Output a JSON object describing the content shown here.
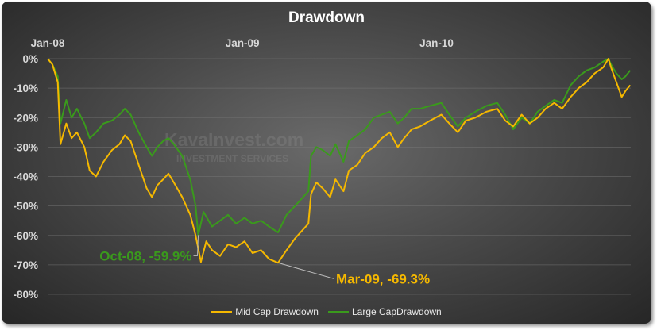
{
  "chart_data": {
    "type": "line",
    "title": "Drawdown",
    "x_tick_labels": [
      "Jan-08",
      "Jan-09",
      "Jan-10"
    ],
    "y_tick_labels": [
      "0%",
      "-10%",
      "-20%",
      "-30%",
      "-40%",
      "-50%",
      "-60%",
      "-70%",
      "-80%"
    ],
    "ylim": [
      -80,
      0
    ],
    "x_range": [
      "2008-01",
      "2011-01"
    ],
    "grid": "horizontal",
    "legend_position": "bottom",
    "watermark": "KavaInvest.com INVESTMENT SERVICES",
    "series": [
      {
        "name": "Mid Cap Drawdown",
        "color": "#f5b800",
        "points": [
          [
            "2008-01-01",
            0
          ],
          [
            "2008-01-10",
            -2
          ],
          [
            "2008-01-20",
            -8
          ],
          [
            "2008-01-25",
            -29
          ],
          [
            "2008-02-05",
            -22
          ],
          [
            "2008-02-15",
            -27
          ],
          [
            "2008-02-25",
            -25
          ],
          [
            "2008-03-10",
            -30
          ],
          [
            "2008-03-20",
            -38
          ],
          [
            "2008-04-01",
            -40
          ],
          [
            "2008-04-15",
            -35
          ],
          [
            "2008-05-01",
            -31
          ],
          [
            "2008-05-15",
            -29
          ],
          [
            "2008-05-25",
            -26
          ],
          [
            "2008-06-05",
            -28
          ],
          [
            "2008-06-20",
            -36
          ],
          [
            "2008-07-05",
            -44
          ],
          [
            "2008-07-15",
            -47
          ],
          [
            "2008-07-25",
            -43
          ],
          [
            "2008-08-05",
            -41
          ],
          [
            "2008-08-15",
            -39
          ],
          [
            "2008-08-25",
            -42
          ],
          [
            "2008-09-10",
            -47
          ],
          [
            "2008-09-25",
            -53
          ],
          [
            "2008-10-05",
            -60
          ],
          [
            "2008-10-15",
            -69
          ],
          [
            "2008-10-25",
            -62
          ],
          [
            "2008-11-05",
            -65
          ],
          [
            "2008-11-20",
            -67
          ],
          [
            "2008-12-05",
            -63
          ],
          [
            "2008-12-20",
            -64
          ],
          [
            "2009-01-05",
            -62
          ],
          [
            "2009-01-20",
            -66
          ],
          [
            "2009-02-05",
            -65
          ],
          [
            "2009-02-20",
            -68
          ],
          [
            "2009-03-09",
            -69.3
          ],
          [
            "2009-03-25",
            -65
          ],
          [
            "2009-04-10",
            -61
          ],
          [
            "2009-04-25",
            -58
          ],
          [
            "2009-05-05",
            -56
          ],
          [
            "2009-05-10",
            -46
          ],
          [
            "2009-05-20",
            -42
          ],
          [
            "2009-06-01",
            -44
          ],
          [
            "2009-06-15",
            -47
          ],
          [
            "2009-06-25",
            -41
          ],
          [
            "2009-07-10",
            -45
          ],
          [
            "2009-07-20",
            -38
          ],
          [
            "2009-08-05",
            -36
          ],
          [
            "2009-08-20",
            -32
          ],
          [
            "2009-09-05",
            -30
          ],
          [
            "2009-09-20",
            -27
          ],
          [
            "2009-10-05",
            -25
          ],
          [
            "2009-10-20",
            -30
          ],
          [
            "2009-11-01",
            -27
          ],
          [
            "2009-11-15",
            -24
          ],
          [
            "2009-12-01",
            -23
          ],
          [
            "2009-12-20",
            -21
          ],
          [
            "2010-01-10",
            -19
          ],
          [
            "2010-01-25",
            -22
          ],
          [
            "2010-02-10",
            -25
          ],
          [
            "2010-02-25",
            -21
          ],
          [
            "2010-03-15",
            -20
          ],
          [
            "2010-04-05",
            -18
          ],
          [
            "2010-04-25",
            -17
          ],
          [
            "2010-05-10",
            -21
          ],
          [
            "2010-05-25",
            -23
          ],
          [
            "2010-06-10",
            -19
          ],
          [
            "2010-06-25",
            -22
          ],
          [
            "2010-07-10",
            -20
          ],
          [
            "2010-07-25",
            -17
          ],
          [
            "2010-08-10",
            -15
          ],
          [
            "2010-08-25",
            -17
          ],
          [
            "2010-09-10",
            -13
          ],
          [
            "2010-09-25",
            -10
          ],
          [
            "2010-10-10",
            -8
          ],
          [
            "2010-10-25",
            -5
          ],
          [
            "2010-11-10",
            -3
          ],
          [
            "2010-11-20",
            0
          ],
          [
            "2010-11-25",
            -3
          ],
          [
            "2010-12-05",
            -8
          ],
          [
            "2010-12-15",
            -13
          ],
          [
            "2010-12-22",
            -11
          ],
          [
            "2010-12-31",
            -9
          ]
        ]
      },
      {
        "name": "Large CapDrawdown",
        "color": "#3a9a1c",
        "points": [
          [
            "2008-01-01",
            0
          ],
          [
            "2008-01-10",
            -2
          ],
          [
            "2008-01-20",
            -6
          ],
          [
            "2008-01-25",
            -22
          ],
          [
            "2008-02-05",
            -14
          ],
          [
            "2008-02-15",
            -20
          ],
          [
            "2008-02-25",
            -17
          ],
          [
            "2008-03-10",
            -22
          ],
          [
            "2008-03-20",
            -27
          ],
          [
            "2008-04-01",
            -25
          ],
          [
            "2008-04-15",
            -22
          ],
          [
            "2008-05-01",
            -21
          ],
          [
            "2008-05-15",
            -19
          ],
          [
            "2008-05-25",
            -17
          ],
          [
            "2008-06-05",
            -19
          ],
          [
            "2008-06-20",
            -25
          ],
          [
            "2008-07-05",
            -30
          ],
          [
            "2008-07-15",
            -33
          ],
          [
            "2008-07-25",
            -30
          ],
          [
            "2008-08-05",
            -28
          ],
          [
            "2008-08-15",
            -27
          ],
          [
            "2008-08-25",
            -29
          ],
          [
            "2008-09-10",
            -33
          ],
          [
            "2008-09-25",
            -41
          ],
          [
            "2008-10-05",
            -50
          ],
          [
            "2008-10-10",
            -59.9
          ],
          [
            "2008-10-20",
            -52
          ],
          [
            "2008-11-05",
            -57
          ],
          [
            "2008-11-20",
            -55
          ],
          [
            "2008-12-05",
            -53
          ],
          [
            "2008-12-20",
            -56
          ],
          [
            "2009-01-05",
            -54
          ],
          [
            "2009-01-20",
            -56
          ],
          [
            "2009-02-05",
            -55
          ],
          [
            "2009-02-20",
            -57
          ],
          [
            "2009-03-09",
            -59
          ],
          [
            "2009-03-25",
            -53
          ],
          [
            "2009-04-10",
            -50
          ],
          [
            "2009-04-25",
            -47
          ],
          [
            "2009-05-05",
            -45
          ],
          [
            "2009-05-10",
            -33
          ],
          [
            "2009-05-20",
            -30
          ],
          [
            "2009-06-01",
            -31
          ],
          [
            "2009-06-15",
            -33
          ],
          [
            "2009-06-25",
            -29
          ],
          [
            "2009-07-10",
            -35
          ],
          [
            "2009-07-20",
            -28
          ],
          [
            "2009-08-05",
            -26
          ],
          [
            "2009-08-20",
            -24
          ],
          [
            "2009-09-05",
            -20
          ],
          [
            "2009-09-20",
            -19
          ],
          [
            "2009-10-05",
            -18
          ],
          [
            "2009-10-20",
            -22
          ],
          [
            "2009-11-01",
            -20
          ],
          [
            "2009-11-15",
            -17
          ],
          [
            "2009-12-01",
            -17
          ],
          [
            "2009-12-20",
            -16
          ],
          [
            "2010-01-10",
            -15
          ],
          [
            "2010-01-25",
            -19
          ],
          [
            "2010-02-10",
            -23
          ],
          [
            "2010-02-25",
            -20
          ],
          [
            "2010-03-15",
            -18
          ],
          [
            "2010-04-05",
            -16
          ],
          [
            "2010-04-25",
            -15
          ],
          [
            "2010-05-10",
            -19
          ],
          [
            "2010-05-25",
            -24
          ],
          [
            "2010-06-10",
            -20
          ],
          [
            "2010-06-25",
            -22
          ],
          [
            "2010-07-10",
            -18
          ],
          [
            "2010-07-25",
            -16
          ],
          [
            "2010-08-10",
            -14
          ],
          [
            "2010-08-25",
            -15
          ],
          [
            "2010-09-10",
            -9
          ],
          [
            "2010-09-25",
            -6
          ],
          [
            "2010-10-10",
            -4
          ],
          [
            "2010-10-25",
            -3
          ],
          [
            "2010-11-10",
            -1
          ],
          [
            "2010-11-20",
            0
          ],
          [
            "2010-11-25",
            -2
          ],
          [
            "2010-12-05",
            -5
          ],
          [
            "2010-12-15",
            -7
          ],
          [
            "2010-12-22",
            -6
          ],
          [
            "2010-12-31",
            -4
          ]
        ]
      }
    ],
    "annotations": [
      {
        "text": "Oct-08, -59.9%",
        "series": "Large CapDrawdown",
        "x": "2008-10-10",
        "y": -59.9,
        "color": "#3a9a1c"
      },
      {
        "text": "Mar-09, -69.3%",
        "series": "Mid Cap Drawdown",
        "x": "2009-03-09",
        "y": -69.3,
        "color": "#f5b800"
      }
    ]
  }
}
